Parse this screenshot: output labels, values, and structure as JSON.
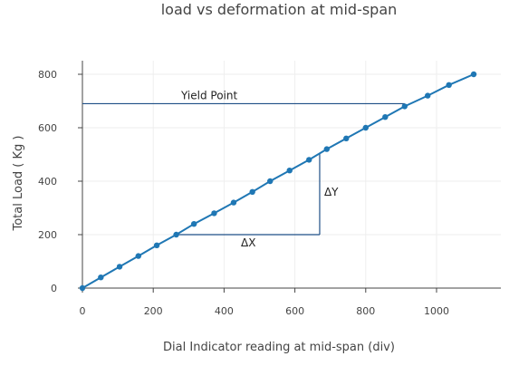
{
  "chart_data": {
    "type": "line",
    "title": "load vs deformation at mid-span",
    "xlabel": "Dial Indicator reading at mid-span (div)",
    "ylabel": "Total Load ( Kg )",
    "xlim": [
      -10,
      1130
    ],
    "ylim": [
      -30,
      855
    ],
    "x_ticks": [
      0,
      200,
      400,
      600,
      800,
      1000
    ],
    "y_ticks": [
      0,
      200,
      400,
      600,
      800
    ],
    "grid": true,
    "legend": "none",
    "series": [
      {
        "color": "#1f77b4",
        "x": [
          0,
          52,
          105,
          158,
          210,
          265,
          315,
          372,
          427,
          480,
          530,
          585,
          640,
          690,
          745,
          800,
          855,
          910,
          975,
          1035,
          1105
        ],
        "y": [
          0,
          40,
          80,
          120,
          160,
          200,
          240,
          280,
          320,
          360,
          400,
          440,
          480,
          520,
          560,
          600,
          640,
          680,
          720,
          760,
          800
        ]
      }
    ],
    "annotations": {
      "yield_point": {
        "label": "Yield Point",
        "y": 690,
        "x_end": 910
      },
      "delta_x": {
        "label": "ΔX",
        "y": 200,
        "x_start": 265,
        "x_end": 670
      },
      "delta_y": {
        "label": "ΔY",
        "x": 670,
        "y_start": 200,
        "y_end": 505
      }
    }
  }
}
